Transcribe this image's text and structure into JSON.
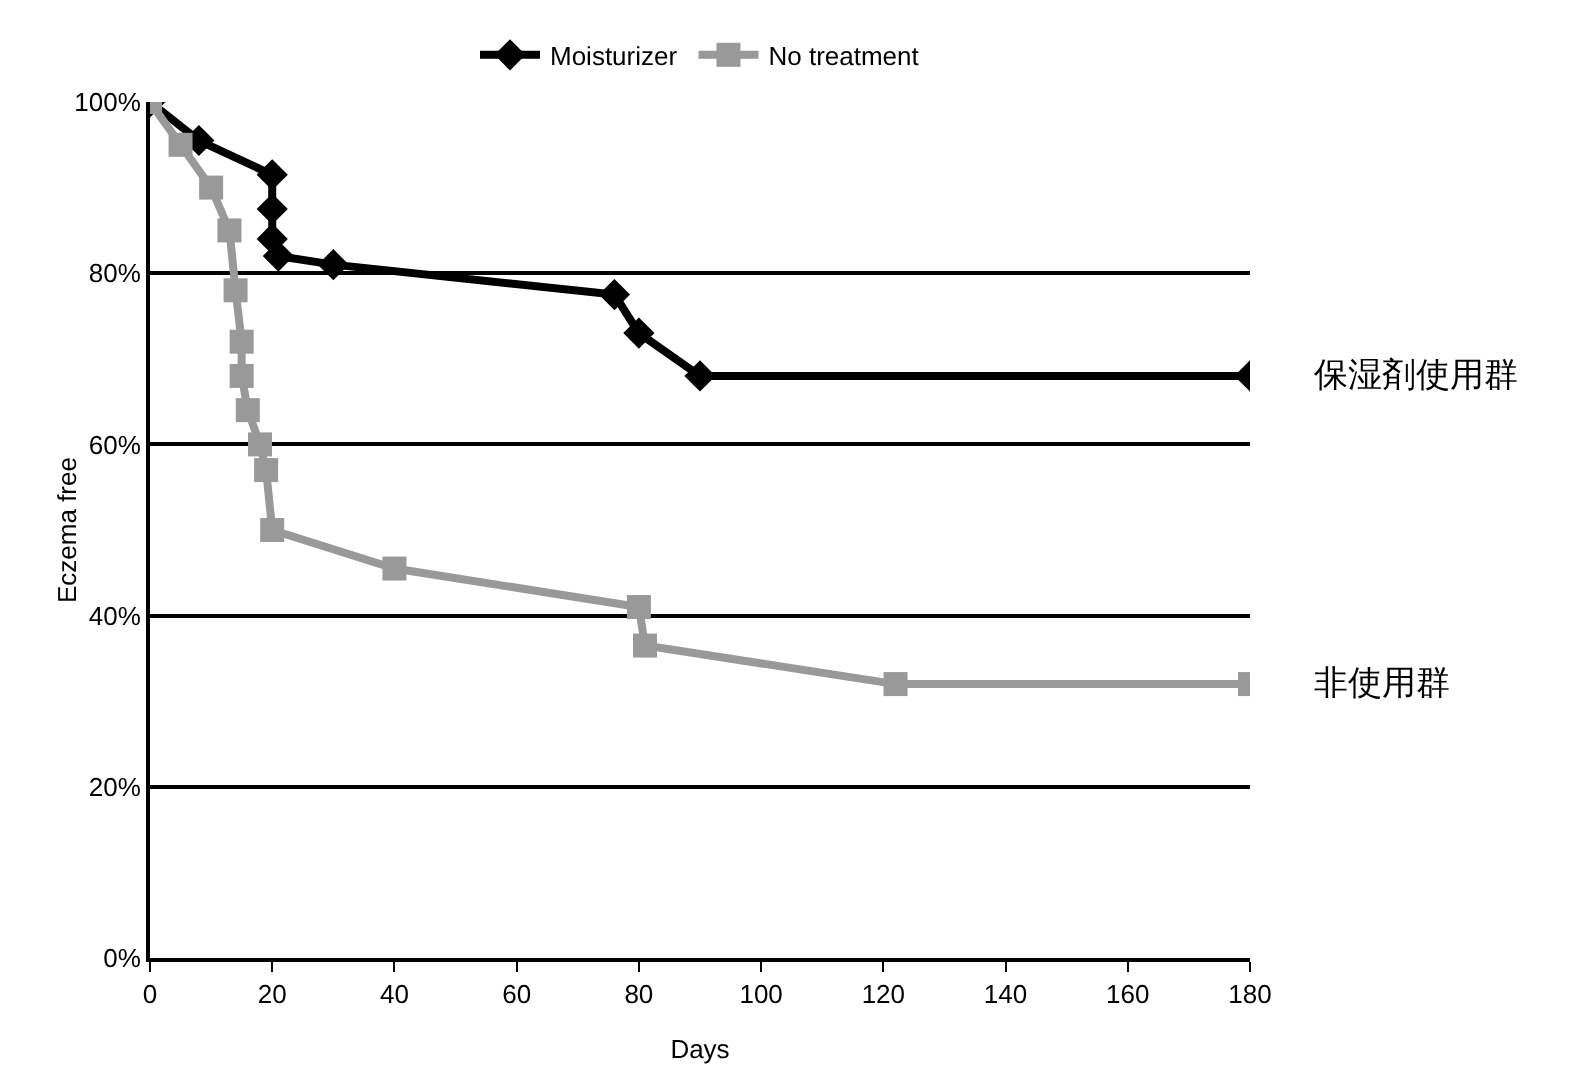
{
  "chart_data": {
    "type": "line",
    "xlabel": "Days",
    "ylabel": "Eczema free",
    "xlim": [
      0,
      180
    ],
    "xticks": [
      0,
      20,
      40,
      60,
      80,
      100,
      120,
      140,
      160,
      180
    ],
    "ylim": [
      0,
      100
    ],
    "yticks": [
      {
        "value": 0,
        "label": "0%"
      },
      {
        "value": 20,
        "label": "20%"
      },
      {
        "value": 40,
        "label": "40%"
      },
      {
        "value": 60,
        "label": "60%"
      },
      {
        "value": 80,
        "label": "80%"
      },
      {
        "value": 100,
        "label": "100%"
      }
    ],
    "grid": "y",
    "legend": "top",
    "line_style": "solid",
    "series": [
      {
        "name": "Moisturizer",
        "color": "#000000",
        "marker": "diamond",
        "x": [
          0,
          8,
          20,
          20,
          20,
          21,
          30,
          76,
          80,
          90,
          180
        ],
        "values": [
          100,
          95.5,
          91.5,
          87.5,
          84,
          82,
          81,
          77.5,
          73,
          68,
          68
        ]
      },
      {
        "name": "No treatment",
        "color": "#999999",
        "marker": "square",
        "x": [
          0,
          5,
          10,
          13,
          14,
          15,
          15,
          16,
          18,
          19,
          20,
          40,
          80,
          81,
          122,
          180
        ],
        "values": [
          100,
          95,
          90,
          85,
          78,
          72,
          68,
          64,
          60,
          57,
          50,
          45.5,
          41,
          36.5,
          32,
          32
        ]
      }
    ],
    "annotations": [
      {
        "text": "保湿剤使用群",
        "x": 180,
        "y": 68
      },
      {
        "text": "非使用群",
        "x": 180,
        "y": 32
      }
    ]
  }
}
